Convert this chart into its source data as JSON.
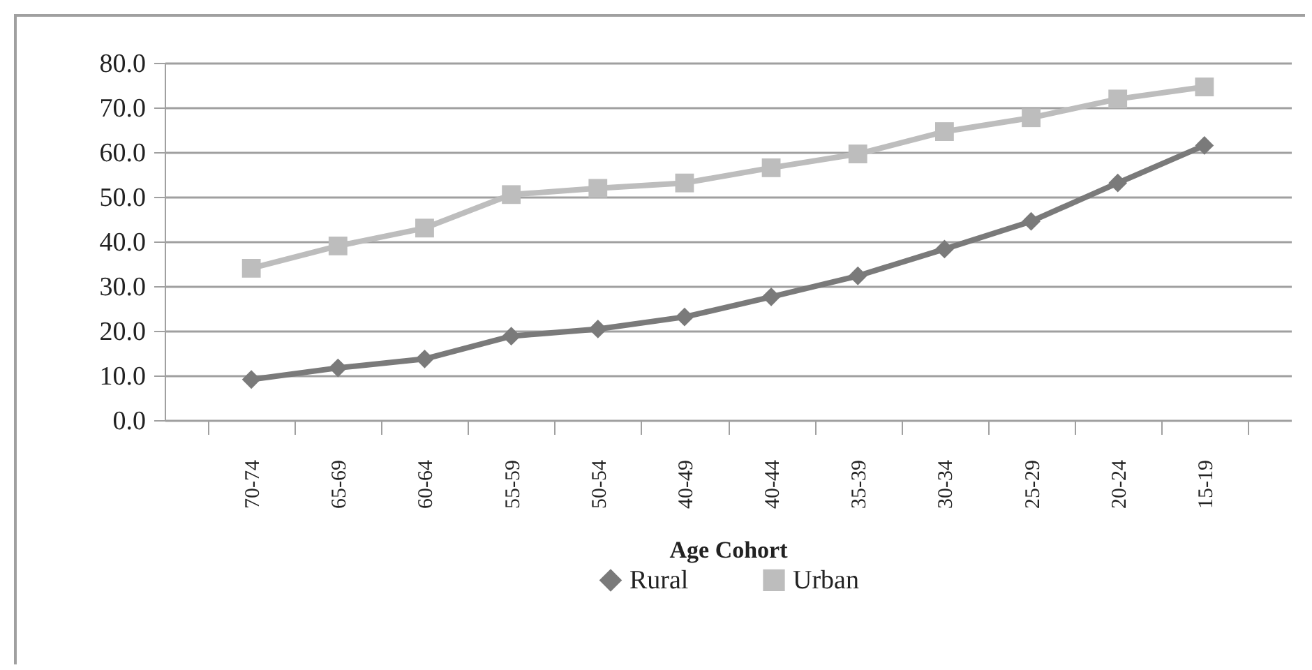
{
  "chart_data": {
    "type": "line",
    "xlabel": "Age  Cohort",
    "categories": [
      "70-74",
      "65-69",
      "60-64",
      "55-59",
      "50-54",
      "40-49",
      "40-44",
      "35-39",
      "30-34",
      "25-29",
      "20-24",
      "15-19"
    ],
    "series": [
      {
        "name": "Rural",
        "color": "#7a7a7a",
        "marker": "diamond",
        "values": [
          9.1,
          11.7,
          13.7,
          18.8,
          20.4,
          23.1,
          27.6,
          32.3,
          38.3,
          44.5,
          53.1,
          61.5
        ]
      },
      {
        "name": "Urban",
        "color": "#bdbdbd",
        "marker": "square",
        "values": [
          34.0,
          39.0,
          43.0,
          50.5,
          51.9,
          53.1,
          56.5,
          59.6,
          64.6,
          67.7,
          71.9,
          74.6
        ]
      }
    ],
    "ylim": [
      0,
      80
    ],
    "yticks": [
      {
        "value": 0,
        "label": "0.0"
      },
      {
        "value": 10,
        "label": "10.0"
      },
      {
        "value": 20,
        "label": "20.0"
      },
      {
        "value": 30,
        "label": "30.0"
      },
      {
        "value": 40,
        "label": "40.0"
      },
      {
        "value": 50,
        "label": "50.0"
      },
      {
        "value": 60,
        "label": "60.0"
      },
      {
        "value": 70,
        "label": "70.0"
      },
      {
        "value": 80,
        "label": "80.0"
      }
    ],
    "grid": "y",
    "legend": "bottom",
    "line_style": "solid"
  }
}
